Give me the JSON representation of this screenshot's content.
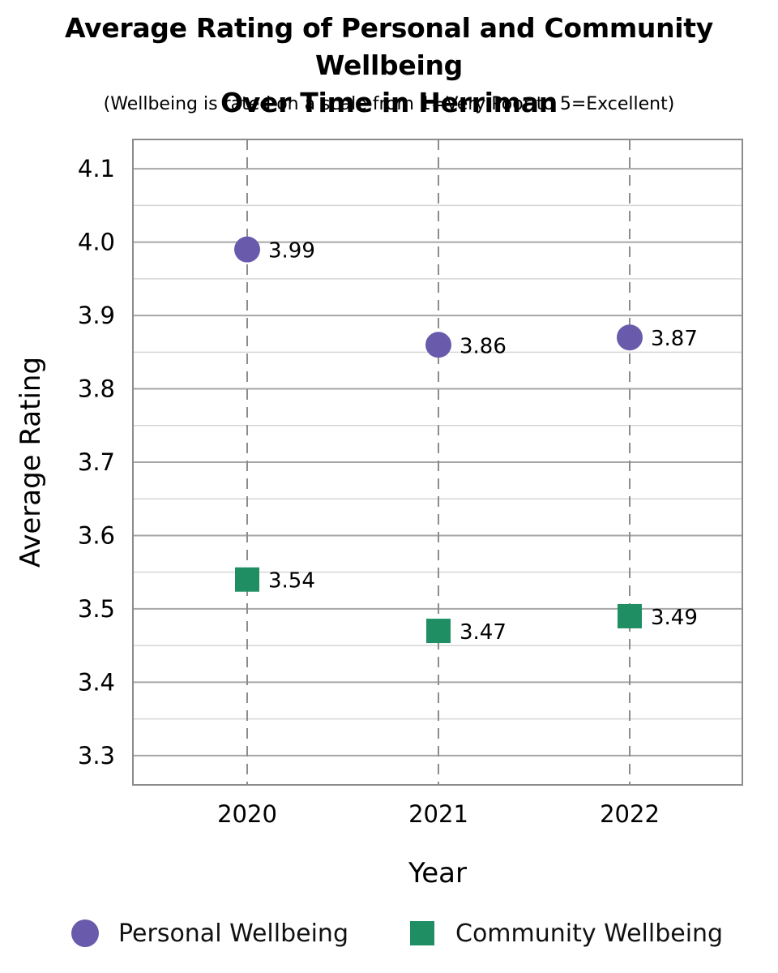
{
  "chart_data": {
    "type": "scatter",
    "title": [
      "Average Rating of Personal and Community Wellbeing",
      "Over Time in Herriman"
    ],
    "subtitle": "(Wellbeing is rated on a scale from 1=Very Poor to 5=Excellent)",
    "xlabel": "Year",
    "ylabel": "Average Rating",
    "categories": [
      "2020",
      "2021",
      "2022"
    ],
    "yticks": [
      "3.3",
      "3.4",
      "3.5",
      "3.6",
      "3.7",
      "3.8",
      "3.9",
      "4.0",
      "4.1"
    ],
    "ylim": [
      3.26,
      4.14
    ],
    "grid": true,
    "legend_position": "bottom",
    "series": [
      {
        "name": "Personal Wellbeing",
        "marker": "circle",
        "color": "#6a5aac",
        "values": [
          3.99,
          3.86,
          3.87
        ],
        "labels": [
          "3.99",
          "3.86",
          "3.87"
        ]
      },
      {
        "name": "Community Wellbeing",
        "marker": "square",
        "color": "#1f8f63",
        "values": [
          3.54,
          3.47,
          3.49
        ],
        "labels": [
          "3.54",
          "3.47",
          "3.49"
        ]
      }
    ]
  }
}
